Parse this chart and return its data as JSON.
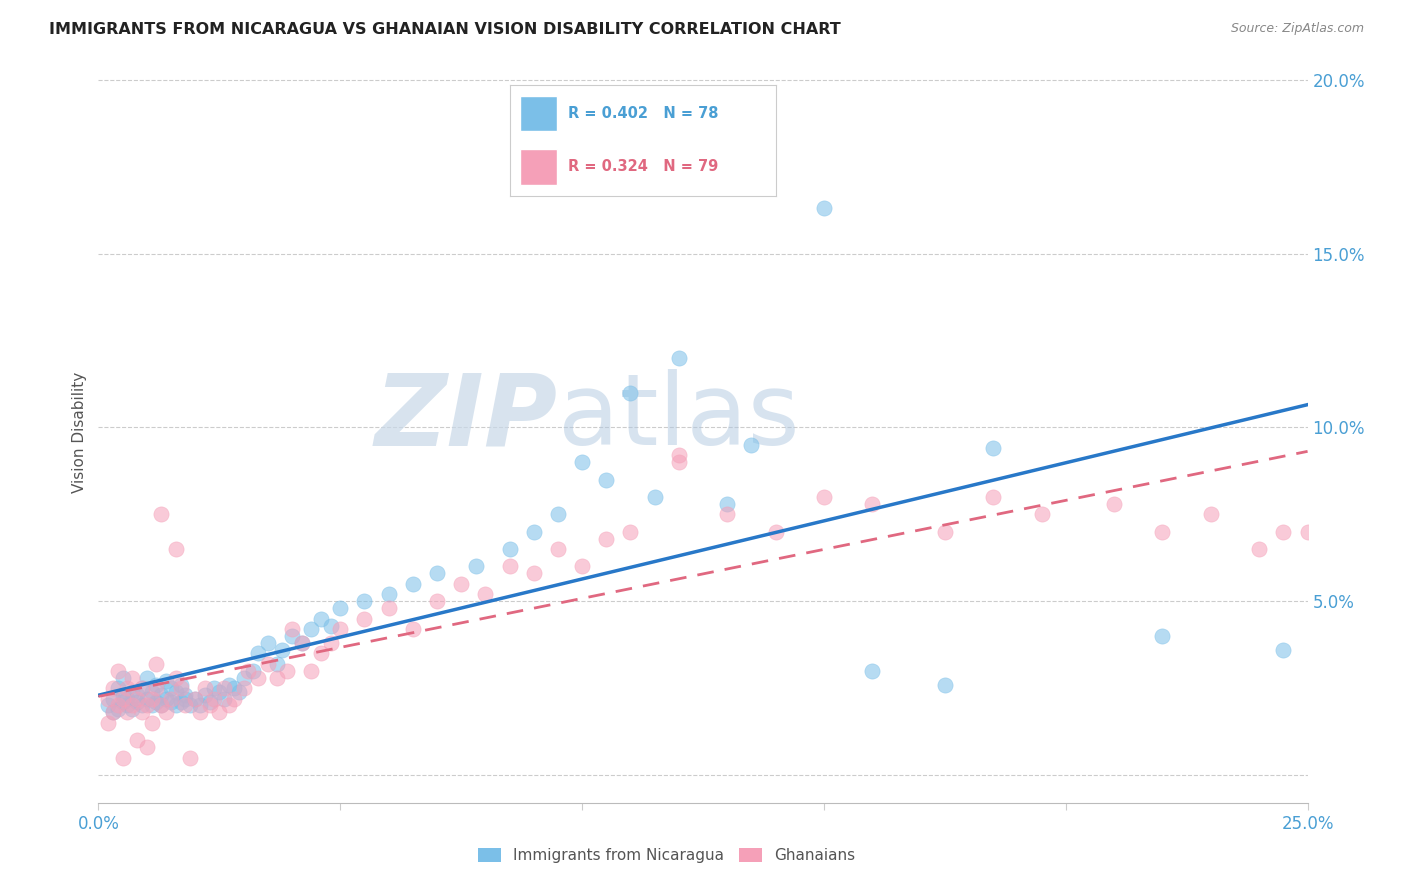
{
  "title": "IMMIGRANTS FROM NICARAGUA VS GHANAIAN VISION DISABILITY CORRELATION CHART",
  "source": "Source: ZipAtlas.com",
  "ylabel": "Vision Disability",
  "legend1_text": "R = 0.402   N = 78",
  "legend2_text": "R = 0.324   N = 79",
  "legend_label1": "Immigrants from Nicaragua",
  "legend_label2": "Ghanaians",
  "blue_color": "#7bbfe8",
  "pink_color": "#f5a0b8",
  "blue_line_color": "#2878c8",
  "pink_line_color": "#e06880",
  "watermark_zip": "ZIP",
  "watermark_atlas": "atlas",
  "xlim": [
    0.0,
    0.25
  ],
  "ylim": [
    -0.008,
    0.205
  ],
  "ytick_vals": [
    0.0,
    0.05,
    0.1,
    0.15,
    0.2
  ],
  "ytick_labels": [
    "",
    "5.0%",
    "10.0%",
    "15.0%",
    "20.0%"
  ],
  "blue_scatter_x": [
    0.002,
    0.003,
    0.003,
    0.004,
    0.004,
    0.005,
    0.005,
    0.005,
    0.006,
    0.006,
    0.007,
    0.007,
    0.008,
    0.008,
    0.009,
    0.009,
    0.01,
    0.01,
    0.011,
    0.011,
    0.012,
    0.012,
    0.013,
    0.013,
    0.014,
    0.014,
    0.015,
    0.015,
    0.016,
    0.016,
    0.017,
    0.017,
    0.018,
    0.018,
    0.019,
    0.02,
    0.021,
    0.022,
    0.023,
    0.024,
    0.025,
    0.026,
    0.027,
    0.028,
    0.029,
    0.03,
    0.032,
    0.033,
    0.035,
    0.037,
    0.038,
    0.04,
    0.042,
    0.044,
    0.046,
    0.048,
    0.05,
    0.055,
    0.06,
    0.065,
    0.07,
    0.078,
    0.085,
    0.09,
    0.095,
    0.1,
    0.105,
    0.11,
    0.115,
    0.12,
    0.13,
    0.135,
    0.15,
    0.16,
    0.175,
    0.185,
    0.22,
    0.245
  ],
  "blue_scatter_y": [
    0.02,
    0.022,
    0.018,
    0.025,
    0.019,
    0.023,
    0.021,
    0.028,
    0.02,
    0.022,
    0.019,
    0.024,
    0.021,
    0.023,
    0.02,
    0.025,
    0.022,
    0.028,
    0.02,
    0.024,
    0.021,
    0.026,
    0.02,
    0.023,
    0.022,
    0.027,
    0.021,
    0.025,
    0.02,
    0.024,
    0.021,
    0.026,
    0.022,
    0.023,
    0.02,
    0.022,
    0.02,
    0.023,
    0.021,
    0.025,
    0.024,
    0.022,
    0.026,
    0.025,
    0.024,
    0.028,
    0.03,
    0.035,
    0.038,
    0.032,
    0.036,
    0.04,
    0.038,
    0.042,
    0.045,
    0.043,
    0.048,
    0.05,
    0.052,
    0.055,
    0.058,
    0.06,
    0.065,
    0.07,
    0.075,
    0.09,
    0.085,
    0.11,
    0.08,
    0.12,
    0.078,
    0.095,
    0.163,
    0.03,
    0.026,
    0.094,
    0.04,
    0.036
  ],
  "pink_scatter_x": [
    0.002,
    0.002,
    0.003,
    0.003,
    0.004,
    0.004,
    0.005,
    0.005,
    0.006,
    0.006,
    0.007,
    0.007,
    0.008,
    0.008,
    0.009,
    0.009,
    0.01,
    0.01,
    0.011,
    0.011,
    0.012,
    0.012,
    0.013,
    0.013,
    0.014,
    0.015,
    0.016,
    0.016,
    0.017,
    0.018,
    0.019,
    0.02,
    0.021,
    0.022,
    0.023,
    0.024,
    0.025,
    0.026,
    0.027,
    0.028,
    0.03,
    0.031,
    0.033,
    0.035,
    0.037,
    0.039,
    0.04,
    0.042,
    0.044,
    0.046,
    0.048,
    0.05,
    0.055,
    0.06,
    0.065,
    0.07,
    0.075,
    0.08,
    0.085,
    0.09,
    0.095,
    0.1,
    0.105,
    0.11,
    0.12,
    0.13,
    0.14,
    0.15,
    0.16,
    0.175,
    0.185,
    0.195,
    0.21,
    0.22,
    0.23,
    0.24,
    0.245,
    0.25,
    0.12
  ],
  "pink_scatter_y": [
    0.022,
    0.015,
    0.025,
    0.018,
    0.02,
    0.03,
    0.022,
    0.005,
    0.018,
    0.025,
    0.02,
    0.028,
    0.022,
    0.01,
    0.025,
    0.018,
    0.02,
    0.008,
    0.022,
    0.015,
    0.025,
    0.032,
    0.02,
    0.075,
    0.018,
    0.022,
    0.065,
    0.028,
    0.025,
    0.02,
    0.005,
    0.022,
    0.018,
    0.025,
    0.02,
    0.022,
    0.018,
    0.025,
    0.02,
    0.022,
    0.025,
    0.03,
    0.028,
    0.032,
    0.028,
    0.03,
    0.042,
    0.038,
    0.03,
    0.035,
    0.038,
    0.042,
    0.045,
    0.048,
    0.042,
    0.05,
    0.055,
    0.052,
    0.06,
    0.058,
    0.065,
    0.06,
    0.068,
    0.07,
    0.09,
    0.075,
    0.07,
    0.08,
    0.078,
    0.07,
    0.08,
    0.075,
    0.078,
    0.07,
    0.075,
    0.065,
    0.07,
    0.07,
    0.092
  ]
}
